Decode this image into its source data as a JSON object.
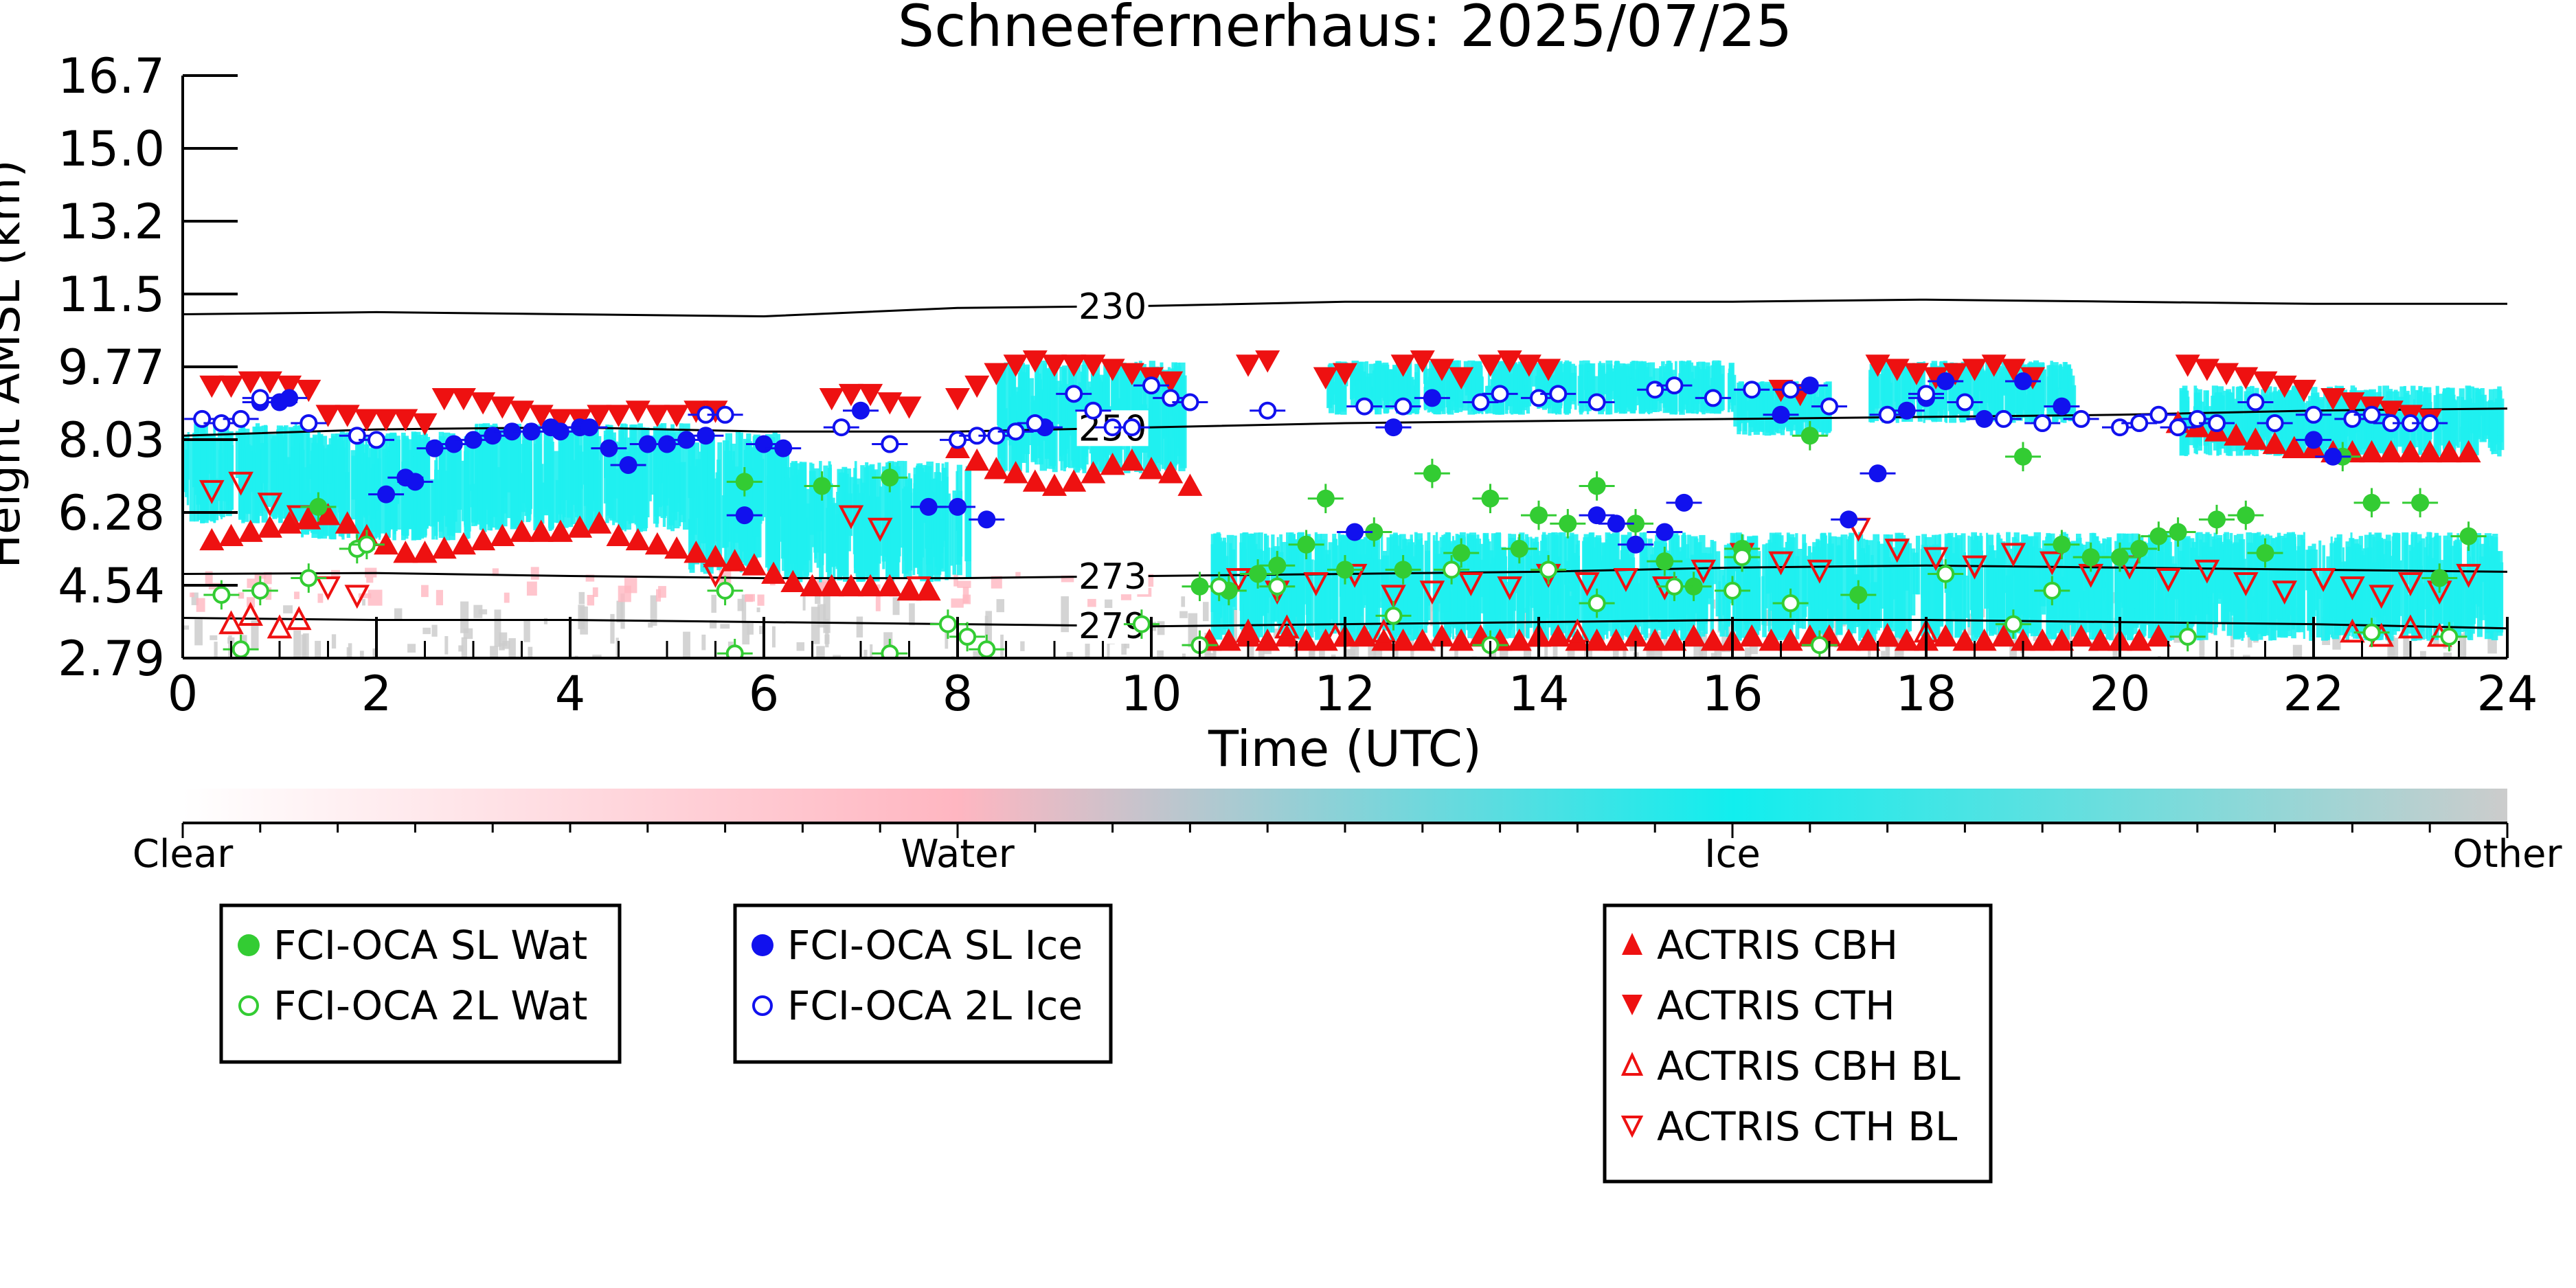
{
  "chart_data": {
    "type": "scatter",
    "title": "Schneefernerhaus: 2025/07/25",
    "xlabel": "Time (UTC)",
    "ylabel": "Height AMSL (km)",
    "xlim": [
      0,
      24
    ],
    "ylim": [
      2.79,
      16.7
    ],
    "x_ticks": [
      "0",
      "2",
      "4",
      "6",
      "8",
      "10",
      "12",
      "14",
      "16",
      "18",
      "20",
      "22",
      "24"
    ],
    "y_ticks": [
      "2.79",
      "4.54",
      "6.28",
      "8.03",
      "9.77",
      "11.5",
      "13.2",
      "15.0",
      "16.7"
    ],
    "grid": false,
    "colors": {
      "sl_wat": "#33cc33",
      "sl_ice": "#1111ee",
      "actris": "#ee1111",
      "ice_mask": "#1ff0f0",
      "water_mask": "#ffb6c1",
      "other_mask": "#cccccc"
    },
    "colorbar": {
      "labels": [
        "Clear",
        "Water",
        "Ice",
        "Other"
      ],
      "stops": [
        "#ffffff",
        "#ffb6c1",
        "#11eeee",
        "#cccccc"
      ]
    },
    "contours": [
      {
        "label": "230",
        "label_x": 9.6,
        "x": [
          0,
          2,
          4,
          6,
          8,
          10,
          12,
          14,
          16,
          18,
          20,
          22,
          24
        ],
        "y": [
          11.0,
          11.05,
          11.0,
          10.95,
          11.15,
          11.2,
          11.3,
          11.3,
          11.3,
          11.35,
          11.3,
          11.25,
          11.25
        ]
      },
      {
        "label": "250",
        "label_x": 9.6,
        "x": [
          0,
          2,
          4,
          6,
          8,
          10,
          12,
          14,
          16,
          18,
          20,
          22,
          24
        ],
        "y": [
          8.1,
          8.25,
          8.3,
          8.2,
          8.2,
          8.3,
          8.4,
          8.45,
          8.5,
          8.55,
          8.6,
          8.7,
          8.75
        ]
      },
      {
        "label": "273",
        "label_x": 9.6,
        "x": [
          0,
          2,
          4,
          6,
          8,
          10,
          12,
          14,
          16,
          18,
          20,
          22,
          24
        ],
        "y": [
          4.8,
          4.82,
          4.75,
          4.7,
          4.7,
          4.75,
          4.8,
          4.85,
          4.95,
          5.0,
          4.95,
          4.9,
          4.85
        ]
      },
      {
        "label": "279",
        "label_x": 9.6,
        "x": [
          0,
          2,
          4,
          6,
          8,
          10,
          12,
          14,
          16,
          18,
          20,
          22,
          24
        ],
        "y": [
          3.75,
          3.7,
          3.7,
          3.65,
          3.6,
          3.55,
          3.6,
          3.65,
          3.7,
          3.7,
          3.65,
          3.6,
          3.5
        ]
      }
    ],
    "series": [
      {
        "name": "FCI-OCA SL Wat",
        "marker": "filled-circle",
        "x": [
          1.4,
          5.8,
          6.6,
          7.3,
          10.5,
          10.8,
          11.1,
          11.3,
          11.6,
          11.8,
          12.0,
          12.3,
          12.6,
          12.9,
          13.2,
          13.5,
          13.8,
          14.0,
          14.3,
          14.6,
          15.0,
          15.3,
          15.6,
          16.1,
          16.8,
          17.3,
          19.0,
          19.4,
          19.7,
          20.0,
          20.2,
          20.4,
          20.6,
          21.0,
          21.3,
          21.5,
          22.3,
          22.6,
          23.1,
          23.3,
          23.6
        ],
        "y": [
          6.4,
          7.0,
          6.9,
          7.1,
          4.5,
          4.4,
          4.8,
          5.0,
          5.5,
          6.6,
          4.9,
          5.8,
          4.9,
          7.2,
          5.3,
          6.6,
          5.4,
          6.2,
          6.0,
          6.9,
          6.0,
          5.1,
          4.5,
          5.4,
          8.1,
          4.3,
          7.6,
          5.5,
          5.2,
          5.2,
          5.4,
          5.7,
          5.8,
          6.1,
          6.2,
          5.3,
          7.6,
          6.5,
          6.5,
          4.7,
          5.7
        ]
      },
      {
        "name": "FCI-OCA 2L Wat",
        "marker": "open-circle",
        "x": [
          0.4,
          0.6,
          0.8,
          1.3,
          1.8,
          1.9,
          5.6,
          5.7,
          7.3,
          7.9,
          8.1,
          8.3,
          9.9,
          10.5,
          10.7,
          11.3,
          12.5,
          13.1,
          13.5,
          14.1,
          14.6,
          15.4,
          16.0,
          16.1,
          16.6,
          16.9,
          18.2,
          18.9,
          19.3,
          20.7,
          22.6,
          23.4
        ],
        "y": [
          4.3,
          3.0,
          4.4,
          4.7,
          5.4,
          5.5,
          4.4,
          2.9,
          2.9,
          3.6,
          3.3,
          3.0,
          3.6,
          3.1,
          4.5,
          4.5,
          3.8,
          4.9,
          3.1,
          4.9,
          4.1,
          4.5,
          4.4,
          5.2,
          4.1,
          3.1,
          4.8,
          3.6,
          4.4,
          3.3,
          3.4,
          3.3
        ]
      },
      {
        "name": "FCI-OCA SL Ice",
        "marker": "filled-circle",
        "x": [
          0.8,
          1.0,
          1.1,
          2.1,
          2.3,
          2.4,
          2.6,
          2.8,
          3.0,
          3.2,
          3.4,
          3.6,
          3.8,
          3.9,
          4.1,
          4.2,
          4.4,
          4.6,
          4.8,
          5.0,
          5.2,
          5.4,
          5.8,
          6.0,
          6.2,
          7.0,
          7.3,
          7.7,
          8.0,
          8.3,
          8.6,
          8.9,
          12.1,
          12.5,
          12.9,
          14.6,
          14.8,
          15.0,
          15.3,
          15.5,
          16.5,
          16.8,
          17.2,
          17.5,
          17.8,
          18.0,
          18.2,
          18.6,
          19.0,
          19.4,
          22.0,
          22.2
        ],
        "y": [
          8.9,
          8.9,
          9.0,
          6.7,
          7.1,
          7.0,
          7.8,
          7.9,
          8.0,
          8.1,
          8.2,
          8.2,
          8.3,
          8.2,
          8.3,
          8.3,
          7.8,
          7.4,
          7.9,
          7.9,
          8.0,
          8.1,
          6.2,
          7.9,
          7.8,
          8.7,
          7.9,
          6.4,
          6.4,
          6.1,
          8.2,
          8.3,
          5.8,
          8.3,
          9.0,
          6.2,
          6.0,
          5.5,
          5.8,
          6.5,
          8.6,
          9.3,
          6.1,
          7.2,
          8.7,
          9.0,
          9.4,
          8.5,
          9.4,
          8.8,
          8.0,
          7.6
        ]
      },
      {
        "name": "FCI-OCA 2L Ice",
        "marker": "open-circle",
        "x": [
          0.2,
          0.4,
          0.6,
          0.8,
          1.3,
          1.8,
          2.0,
          5.4,
          5.6,
          6.8,
          7.3,
          8.0,
          8.2,
          8.4,
          8.6,
          8.8,
          9.2,
          9.4,
          9.6,
          9.8,
          10.0,
          10.2,
          10.4,
          11.2,
          12.2,
          12.6,
          13.4,
          13.6,
          14.0,
          14.2,
          14.6,
          15.2,
          15.4,
          15.8,
          16.2,
          16.6,
          17.0,
          17.6,
          18.0,
          18.4,
          18.8,
          19.2,
          19.6,
          20.0,
          20.2,
          20.4,
          20.6,
          20.8,
          21.0,
          21.4,
          21.6,
          22.0,
          22.4,
          22.6,
          22.8,
          23.0,
          23.2
        ],
        "y": [
          8.5,
          8.4,
          8.5,
          9.0,
          8.4,
          8.1,
          8.0,
          8.6,
          8.6,
          8.3,
          7.9,
          8.0,
          8.1,
          8.1,
          8.2,
          8.4,
          9.1,
          8.7,
          8.3,
          8.3,
          9.3,
          9.0,
          8.9,
          8.7,
          8.8,
          8.8,
          8.9,
          9.1,
          9.0,
          9.1,
          8.9,
          9.2,
          9.3,
          9.0,
          9.2,
          9.2,
          8.8,
          8.6,
          9.1,
          8.9,
          8.5,
          8.4,
          8.5,
          8.3,
          8.4,
          8.6,
          8.3,
          8.5,
          8.4,
          8.9,
          8.4,
          8.6,
          8.5,
          8.6,
          8.4,
          8.4,
          8.4
        ]
      },
      {
        "name": "ACTRIS CBH",
        "marker": "triangle-up",
        "x": [
          0.3,
          0.5,
          0.7,
          0.9,
          1.1,
          1.3,
          1.5,
          1.7,
          1.9,
          2.1,
          2.3,
          2.5,
          2.7,
          2.9,
          3.1,
          3.3,
          3.5,
          3.7,
          3.9,
          4.1,
          4.3,
          4.5,
          4.7,
          4.9,
          5.1,
          5.3,
          5.5,
          5.7,
          5.9,
          6.1,
          6.3,
          6.5,
          6.7,
          6.9,
          7.1,
          7.3,
          7.5,
          7.7,
          8.0,
          8.2,
          8.4,
          8.6,
          8.8,
          9.0,
          9.2,
          9.4,
          9.6,
          9.8,
          10.0,
          10.2,
          10.4,
          10.6,
          10.8,
          11.0,
          11.2,
          11.4,
          11.6,
          11.8,
          12.0,
          12.2,
          12.4,
          12.6,
          12.8,
          13.0,
          13.2,
          13.4,
          13.6,
          13.8,
          14.0,
          14.2,
          14.4,
          14.6,
          14.8,
          15.0,
          15.2,
          15.4,
          15.6,
          15.8,
          16.0,
          16.2,
          16.4,
          16.6,
          16.8,
          17.0,
          17.2,
          17.4,
          17.6,
          17.8,
          18.0,
          18.2,
          18.4,
          18.6,
          18.8,
          19.0,
          19.2,
          19.4,
          19.6,
          19.8,
          20.0,
          20.2,
          20.4,
          20.6,
          20.8,
          21.0,
          21.2,
          21.4,
          21.6,
          21.8,
          22.0,
          22.2,
          22.4,
          22.6,
          22.8,
          23.0,
          23.2,
          23.4,
          23.6
        ],
        "y": [
          5.6,
          5.7,
          5.8,
          5.9,
          6.0,
          6.1,
          6.2,
          6.0,
          5.7,
          5.5,
          5.3,
          5.3,
          5.4,
          5.5,
          5.6,
          5.7,
          5.8,
          5.8,
          5.8,
          5.9,
          6.0,
          5.7,
          5.6,
          5.5,
          5.4,
          5.3,
          5.2,
          5.1,
          5.0,
          4.8,
          4.6,
          4.5,
          4.5,
          4.5,
          4.5,
          4.5,
          4.4,
          4.4,
          7.8,
          7.5,
          7.3,
          7.2,
          7.0,
          6.9,
          7.0,
          7.2,
          7.4,
          7.5,
          7.3,
          7.2,
          6.9,
          3.2,
          3.2,
          3.3,
          3.2,
          3.3,
          3.2,
          3.2,
          3.3,
          3.3,
          3.2,
          3.2,
          3.2,
          3.3,
          3.2,
          3.3,
          3.2,
          3.2,
          3.3,
          3.3,
          3.2,
          3.2,
          3.2,
          3.3,
          3.2,
          3.2,
          3.3,
          3.2,
          3.2,
          3.3,
          3.2,
          3.2,
          3.3,
          3.3,
          3.2,
          3.2,
          3.3,
          3.2,
          3.2,
          3.3,
          3.2,
          3.2,
          3.3,
          3.2,
          3.2,
          3.2,
          3.3,
          3.2,
          3.2,
          3.2,
          3.3,
          8.4,
          8.3,
          8.2,
          8.1,
          8.0,
          7.9,
          7.8,
          7.8,
          7.7,
          7.7,
          7.7,
          7.7,
          7.7,
          7.7,
          7.7,
          7.7
        ]
      },
      {
        "name": "ACTRIS CTH",
        "marker": "triangle-down",
        "x": [
          0.3,
          0.5,
          0.7,
          0.9,
          1.1,
          1.3,
          1.5,
          1.7,
          1.9,
          2.1,
          2.3,
          2.5,
          2.7,
          2.9,
          3.1,
          3.3,
          3.5,
          3.7,
          3.9,
          4.1,
          4.3,
          4.5,
          4.7,
          4.9,
          5.1,
          5.3,
          5.5,
          6.7,
          6.9,
          7.1,
          7.3,
          7.5,
          8.0,
          8.2,
          8.4,
          8.6,
          8.8,
          9.0,
          9.2,
          9.4,
          9.6,
          9.8,
          10.0,
          10.2,
          11.0,
          11.2,
          11.8,
          12.0,
          12.6,
          12.8,
          13.0,
          13.2,
          13.5,
          13.7,
          13.9,
          14.1,
          16.5,
          16.7,
          17.5,
          17.7,
          17.9,
          18.1,
          18.3,
          18.5,
          18.7,
          18.9,
          19.1,
          20.7,
          20.9,
          21.1,
          21.3,
          21.5,
          21.7,
          21.9,
          22.2,
          22.4,
          22.6,
          22.8,
          23.0,
          23.2
        ],
        "y": [
          9.3,
          9.3,
          9.4,
          9.4,
          9.3,
          9.2,
          8.6,
          8.6,
          8.5,
          8.5,
          8.5,
          8.4,
          9.0,
          9.0,
          8.9,
          8.8,
          8.7,
          8.6,
          8.5,
          8.5,
          8.6,
          8.6,
          8.7,
          8.6,
          8.6,
          8.7,
          8.7,
          9.0,
          9.1,
          9.1,
          8.9,
          8.8,
          9.0,
          9.3,
          9.6,
          9.8,
          9.9,
          9.8,
          9.8,
          9.8,
          9.7,
          9.6,
          9.5,
          9.4,
          9.8,
          9.9,
          9.5,
          9.6,
          9.8,
          9.9,
          9.7,
          9.5,
          9.8,
          9.9,
          9.8,
          9.7,
          9.2,
          9.1,
          9.8,
          9.7,
          9.6,
          9.5,
          9.6,
          9.7,
          9.8,
          9.7,
          9.5,
          9.8,
          9.7,
          9.6,
          9.5,
          9.4,
          9.3,
          9.2,
          9.0,
          8.9,
          8.8,
          8.7,
          8.6,
          8.5
        ]
      },
      {
        "name": "ACTRIS CBH BL",
        "marker": "open-triangle-up",
        "x": [
          0.5,
          0.7,
          1.0,
          1.2,
          11.0,
          11.4,
          11.9,
          12.4,
          14.0,
          14.4,
          17.6,
          18.0,
          22.4,
          22.7,
          23.0,
          23.3
        ],
        "y": [
          3.6,
          3.8,
          3.5,
          3.7,
          3.4,
          3.5,
          3.3,
          3.4,
          3.3,
          3.4,
          3.3,
          3.4,
          3.4,
          3.3,
          3.5,
          3.3
        ]
      },
      {
        "name": "ACTRIS CTH BL",
        "marker": "open-triangle-down",
        "x": [
          0.3,
          0.6,
          0.9,
          1.2,
          1.5,
          1.8,
          5.5,
          6.9,
          7.2,
          7.6,
          10.9,
          11.3,
          11.7,
          12.1,
          12.5,
          12.9,
          13.3,
          13.7,
          14.1,
          14.5,
          14.9,
          15.3,
          15.7,
          16.1,
          16.5,
          16.9,
          17.3,
          17.7,
          18.1,
          18.5,
          18.9,
          19.3,
          19.7,
          20.1,
          20.5,
          20.9,
          21.3,
          21.7,
          22.1,
          22.4,
          22.7,
          23.0,
          23.3,
          23.6
        ],
        "y": [
          6.8,
          7.0,
          6.5,
          6.2,
          4.5,
          4.3,
          4.8,
          6.2,
          5.9,
          4.5,
          4.7,
          4.4,
          4.6,
          4.8,
          4.3,
          4.4,
          4.6,
          4.5,
          4.8,
          4.6,
          4.7,
          4.5,
          4.9,
          5.3,
          5.1,
          4.9,
          5.9,
          5.4,
          5.2,
          5.0,
          5.3,
          5.1,
          4.8,
          5.0,
          4.7,
          4.9,
          4.6,
          4.4,
          4.7,
          4.5,
          4.3,
          4.6,
          4.4,
          4.8
        ]
      }
    ],
    "legend_groups": [
      [
        "FCI-OCA SL Wat",
        "FCI-OCA 2L Wat"
      ],
      [
        "FCI-OCA SL Ice",
        "FCI-OCA 2L Ice"
      ],
      [
        "ACTRIS CBH",
        "ACTRIS CTH",
        "ACTRIS CBH BL",
        "ACTRIS CTH BL"
      ]
    ],
    "legend_placement": "below"
  }
}
